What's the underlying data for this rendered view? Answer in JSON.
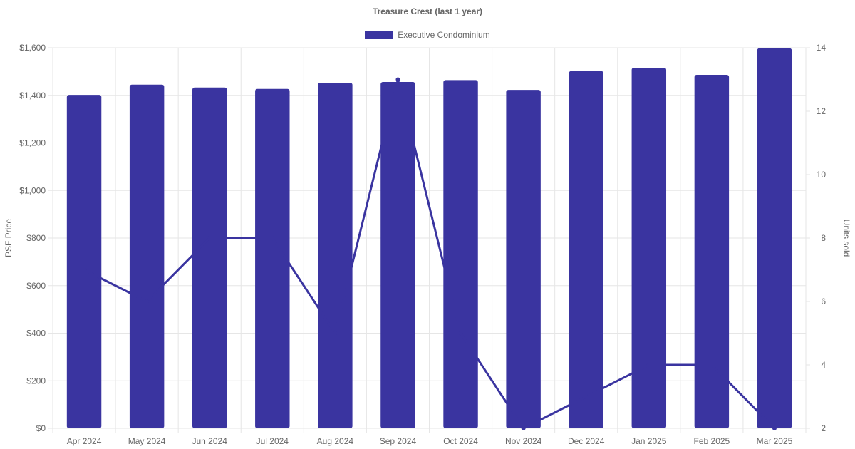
{
  "chart_data": {
    "type": "bar",
    "title": "Treasure Crest (last 1 year)",
    "categories": [
      "Apr 2024",
      "May 2024",
      "Jun 2024",
      "Jul 2024",
      "Aug 2024",
      "Sep 2024",
      "Oct 2024",
      "Nov 2024",
      "Dec 2024",
      "Jan 2025",
      "Feb 2025",
      "Mar 2025"
    ],
    "series": [
      {
        "name": "Executive Condominium",
        "type": "bar",
        "axis": "left",
        "values": [
          1402,
          1445,
          1433,
          1427,
          1453,
          1456,
          1464,
          1423,
          1502,
          1516,
          1486,
          1598
        ]
      },
      {
        "type": "line",
        "axis": "right",
        "values": [
          7,
          6,
          8,
          8,
          5,
          13,
          5,
          2,
          3,
          4,
          4,
          2
        ]
      }
    ],
    "ylabel": "PSF Price",
    "y2label": "Units sold",
    "ylim": [
      0,
      1600
    ],
    "y2lim": [
      2,
      14
    ],
    "yticks": [
      "$0",
      "$200",
      "$400",
      "$600",
      "$800",
      "$1,000",
      "$1,200",
      "$1,400",
      "$1,600"
    ],
    "y2ticks": [
      "2",
      "4",
      "6",
      "8",
      "10",
      "12",
      "14"
    ],
    "legend": "top-center",
    "grid": true,
    "colors": {
      "bar": "#3a34a0",
      "line": "#3a34a0",
      "grid": "#e6e6e6",
      "text": "#666666"
    }
  }
}
